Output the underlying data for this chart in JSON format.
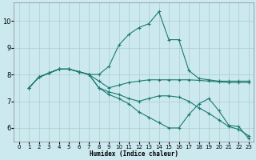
{
  "xlabel": "Humidex (Indice chaleur)",
  "bg_color": "#cce9f0",
  "grid_color": "#aacccc",
  "line_color": "#1a7a6e",
  "xlim": [
    -0.5,
    23.5
  ],
  "ylim": [
    5.5,
    10.7
  ],
  "yticks": [
    6,
    7,
    8,
    9,
    10
  ],
  "xticks": [
    0,
    1,
    2,
    3,
    4,
    5,
    6,
    7,
    8,
    9,
    10,
    11,
    12,
    13,
    14,
    15,
    16,
    17,
    18,
    19,
    20,
    21,
    22,
    23
  ],
  "series": [
    [
      7.5,
      7.9,
      8.05,
      8.2,
      8.2,
      8.1,
      8.0,
      8.0,
      8.3,
      9.1,
      9.5,
      9.75,
      9.9,
      10.35,
      9.3,
      9.3,
      8.15,
      7.85,
      7.8,
      7.75,
      7.75,
      7.75,
      7.75
    ],
    [
      7.5,
      7.9,
      8.05,
      8.2,
      8.2,
      8.1,
      8.0,
      7.75,
      7.5,
      7.6,
      7.7,
      7.75,
      7.8,
      7.8,
      7.8,
      7.8,
      7.8,
      7.78,
      7.75,
      7.72,
      7.7,
      7.7,
      7.7
    ],
    [
      7.5,
      7.9,
      8.05,
      8.2,
      8.2,
      8.1,
      8.0,
      7.5,
      7.35,
      7.25,
      7.1,
      7.0,
      7.1,
      7.2,
      7.2,
      7.15,
      7.0,
      6.75,
      6.55,
      6.3,
      6.05,
      5.95,
      5.7
    ],
    [
      7.5,
      7.9,
      8.05,
      8.2,
      8.2,
      8.1,
      8.0,
      7.5,
      7.25,
      7.1,
      6.9,
      6.6,
      6.4,
      6.2,
      6.0,
      6.0,
      6.5,
      6.9,
      7.1,
      6.65,
      6.1,
      6.05,
      5.6
    ]
  ]
}
